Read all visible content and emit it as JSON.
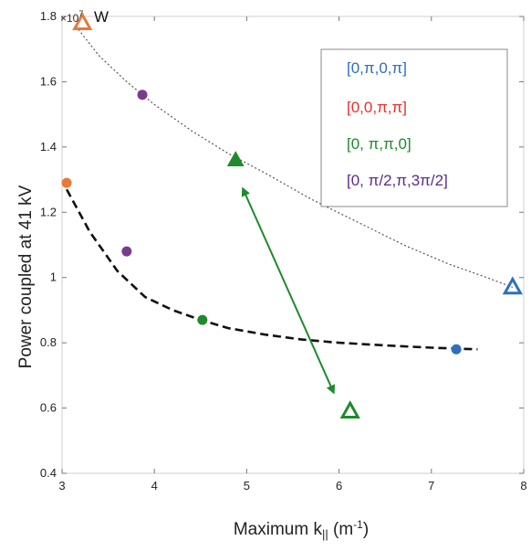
{
  "chart_data": {
    "type": "scatter",
    "title": "",
    "xlabel": "Maximum k",
    "xlabel_subscript": "||",
    "xlabel_unit": " (m",
    "xlabel_unit_exp": "-1",
    "xlabel_unit_close": ")",
    "ylabel": "Power coupled at 41 kV",
    "y_multiplier": "×10",
    "y_multiplier_exp": "7",
    "y_unit": "W",
    "xlim": [
      3,
      8
    ],
    "ylim": [
      0.4,
      1.8
    ],
    "xticks": [
      "3",
      "4",
      "5",
      "6",
      "7",
      "8"
    ],
    "yticks": [
      "0.4",
      "0.6",
      "0.8",
      "1",
      "1.2",
      "1.4",
      "1.6",
      "1.8"
    ],
    "grid": false,
    "legend_position": "top-right",
    "series": [
      {
        "name": "[0,π,0,π]",
        "color": "#2e6fbe",
        "points": [
          {
            "x": 7.27,
            "y": 0.78,
            "marker": "circle"
          },
          {
            "x": 7.88,
            "y": 0.97,
            "marker": "triangle-open"
          }
        ]
      },
      {
        "name": "[0,0,π,π]",
        "color": "#e8302a",
        "points": [
          {
            "x": 3.05,
            "y": 1.29,
            "marker": "circle",
            "fill": "#e8793a"
          },
          {
            "x": 3.22,
            "y": 1.78,
            "marker": "triangle-open",
            "fill": "#e8793a"
          }
        ]
      },
      {
        "name": "[0, π,π,0]",
        "color": "#1f8a2c",
        "points": [
          {
            "x": 4.52,
            "y": 0.87,
            "marker": "circle"
          },
          {
            "x": 4.88,
            "y": 1.36,
            "marker": "triangle-filled"
          },
          {
            "x": 6.12,
            "y": 0.59,
            "marker": "triangle-open"
          }
        ]
      },
      {
        "name": "[0, π/2,π,3π/2]",
        "color": "#5a2d8c",
        "points": [
          {
            "x": 3.7,
            "y": 1.08,
            "marker": "circle",
            "fill": "#7a3b8f"
          },
          {
            "x": 3.87,
            "y": 1.56,
            "marker": "circle",
            "fill": "#7a3b8f"
          }
        ]
      }
    ],
    "fit_curves": [
      {
        "style": "dashed-thick",
        "color": "#111111",
        "x": [
          3.05,
          3.3,
          3.6,
          3.9,
          4.2,
          4.5,
          4.8,
          5.2,
          5.6,
          6.0,
          6.5,
          7.0,
          7.5
        ],
        "y": [
          1.27,
          1.14,
          1.02,
          0.94,
          0.9,
          0.87,
          0.845,
          0.825,
          0.81,
          0.8,
          0.792,
          0.785,
          0.78
        ]
      },
      {
        "style": "dotted-thin",
        "color": "#555555",
        "x": [
          3.15,
          3.4,
          3.7,
          4.0,
          4.4,
          4.8,
          5.2,
          5.7,
          6.2,
          6.7,
          7.2,
          7.6,
          7.88
        ],
        "y": [
          1.77,
          1.68,
          1.6,
          1.53,
          1.45,
          1.38,
          1.32,
          1.24,
          1.17,
          1.1,
          1.04,
          1.0,
          0.97
        ]
      }
    ],
    "arrow": {
      "color": "#1f8a2c",
      "from": {
        "x": 4.97,
        "y": 1.265
      },
      "to": {
        "x": 5.93,
        "y": 0.655
      }
    }
  }
}
